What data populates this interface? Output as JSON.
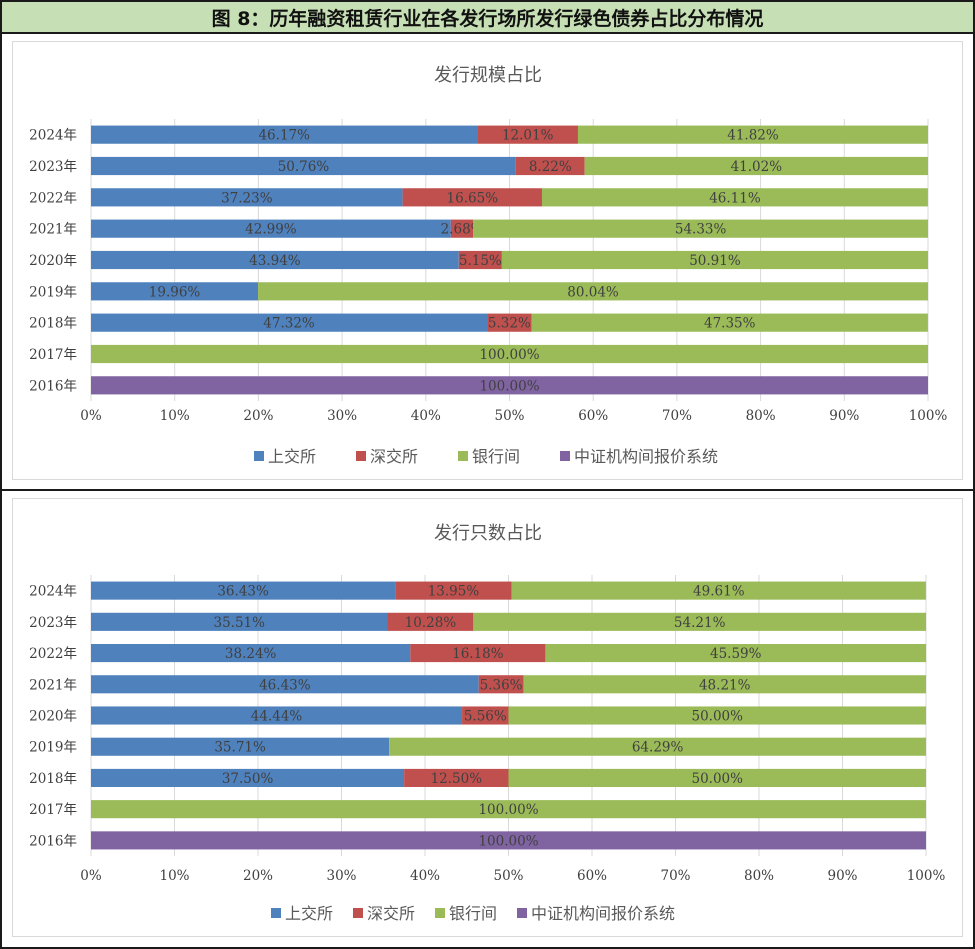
{
  "figure_title": "图 8：历年融资租赁行业在各发行场所发行绿色债券占比分布情况",
  "colors": {
    "上交所": "#4f81bd",
    "深交所": "#c0504d",
    "银行间": "#9bbb59",
    "中证机构间报价系统": "#8064a2"
  },
  "chart_data": [
    {
      "type": "bar",
      "orientation": "horizontal",
      "stacked": "percent",
      "title": "发行规模占比",
      "categories": [
        "2024年",
        "2023年",
        "2022年",
        "2021年",
        "2020年",
        "2019年",
        "2018年",
        "2017年",
        "2016年"
      ],
      "x_ticks": [
        "0%",
        "10%",
        "20%",
        "30%",
        "40%",
        "50%",
        "60%",
        "70%",
        "80%",
        "90%",
        "100%"
      ],
      "xlim": [
        0,
        100
      ],
      "grid": true,
      "legend_position": "bottom",
      "series": [
        {
          "name": "上交所",
          "values": [
            46.17,
            50.76,
            37.23,
            42.99,
            43.94,
            19.96,
            47.32,
            null,
            null
          ],
          "labels": [
            "46.17%",
            "50.76%",
            "37.23%",
            "42.99%",
            "43.94%",
            "19.96%",
            "47.32%",
            "",
            ""
          ]
        },
        {
          "name": "深交所",
          "values": [
            12.01,
            8.22,
            16.65,
            2.68,
            5.15,
            null,
            5.32,
            null,
            null
          ],
          "labels": [
            "12.01%",
            "8.22%",
            "16.65%",
            "2.68%",
            "5.15%",
            "",
            "5.32%",
            "",
            ""
          ]
        },
        {
          "name": "银行间",
          "values": [
            41.82,
            41.02,
            46.11,
            54.33,
            50.91,
            80.04,
            47.35,
            100,
            null
          ],
          "labels": [
            "41.82%",
            "41.02%",
            "46.11%",
            "54.33%",
            "50.91%",
            "80.04%",
            "47.35%",
            "100.00%",
            ""
          ]
        },
        {
          "name": "中证机构间报价系统",
          "values": [
            null,
            null,
            null,
            null,
            null,
            null,
            null,
            null,
            100
          ],
          "labels": [
            "",
            "",
            "",
            "",
            "",
            "",
            "",
            "",
            "100.00%"
          ]
        }
      ]
    },
    {
      "type": "bar",
      "orientation": "horizontal",
      "stacked": "percent",
      "title": "发行只数占比",
      "categories": [
        "2024年",
        "2023年",
        "2022年",
        "2021年",
        "2020年",
        "2019年",
        "2018年",
        "2017年",
        "2016年"
      ],
      "x_ticks": [
        "0%",
        "10%",
        "20%",
        "30%",
        "40%",
        "50%",
        "60%",
        "70%",
        "80%",
        "90%",
        "100%"
      ],
      "xlim": [
        0,
        100
      ],
      "grid": true,
      "legend_position": "bottom",
      "series": [
        {
          "name": "上交所",
          "values": [
            36.43,
            35.51,
            38.24,
            46.43,
            44.44,
            35.71,
            37.5,
            null,
            null
          ],
          "labels": [
            "36.43%",
            "35.51%",
            "38.24%",
            "46.43%",
            "44.44%",
            "35.71%",
            "37.50%",
            "",
            ""
          ]
        },
        {
          "name": "深交所",
          "values": [
            13.95,
            10.28,
            16.18,
            5.36,
            5.56,
            null,
            12.5,
            null,
            null
          ],
          "labels": [
            "13.95%",
            "10.28%",
            "16.18%",
            "5.36%",
            "5.56%",
            "",
            "12.50%",
            "",
            ""
          ]
        },
        {
          "name": "银行间",
          "values": [
            49.61,
            54.21,
            45.59,
            48.21,
            50.0,
            64.29,
            50.0,
            100,
            null
          ],
          "labels": [
            "49.61%",
            "54.21%",
            "45.59%",
            "48.21%",
            "50.00%",
            "64.29%",
            "50.00%",
            "100.00%",
            ""
          ]
        },
        {
          "name": "中证机构间报价系统",
          "values": [
            null,
            null,
            null,
            null,
            null,
            null,
            null,
            null,
            100
          ],
          "labels": [
            "",
            "",
            "",
            "",
            "",
            "",
            "",
            "",
            "100.00%"
          ]
        }
      ]
    }
  ]
}
